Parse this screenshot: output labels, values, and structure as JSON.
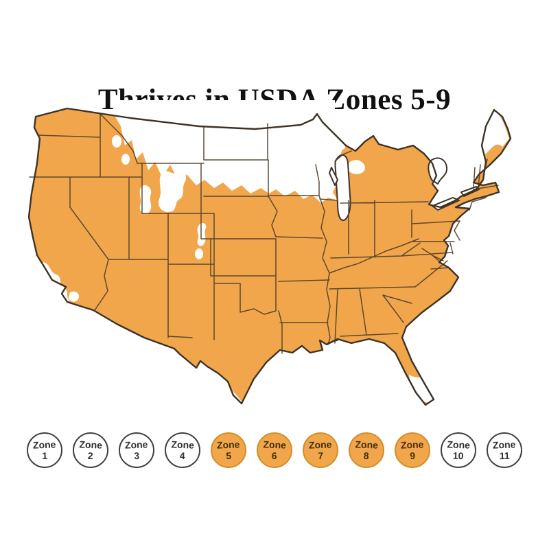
{
  "title": "Thrives in USDA Zones 5-9",
  "map": {
    "region": "Contiguous United States",
    "highlight_description": "States and areas in USDA hardiness zones 5-9 shaded orange; colder northern zones (1-4) and hottest southern tips (zones 10-11) left white",
    "white_areas": "Montana, North Dakota, most of South Dakota, northern Minnesota, northern Wisconsin, parts of upper Michigan, Rocky Mountain patches in Idaho/Wyoming/Utah/Colorado, northern Maine, northern New York/Vermont/New Hampshire, southern California coast, southern tip of Texas, southern tip of Florida"
  },
  "colors": {
    "background": "#ffffff",
    "title_color": "#111111",
    "map_orange": "#f1a64b",
    "map_outline": "#3e3226",
    "state_line": "#53422c",
    "lake_fill": "#ffffff",
    "badge_stroke": "#3f3f3f",
    "badge_text": "#303030",
    "badge_active_stroke": "#d28e2a",
    "badge_active_text": "#45300d"
  },
  "legend": {
    "zones": [
      {
        "label": "Zone",
        "number": "1",
        "active": false
      },
      {
        "label": "Zone",
        "number": "2",
        "active": false
      },
      {
        "label": "Zone",
        "number": "3",
        "active": false
      },
      {
        "label": "Zone",
        "number": "4",
        "active": false
      },
      {
        "label": "Zone",
        "number": "5",
        "active": true
      },
      {
        "label": "Zone",
        "number": "6",
        "active": true
      },
      {
        "label": "Zone",
        "number": "7",
        "active": true
      },
      {
        "label": "Zone",
        "number": "8",
        "active": true
      },
      {
        "label": "Zone",
        "number": "9",
        "active": true
      },
      {
        "label": "Zone",
        "number": "10",
        "active": false
      },
      {
        "label": "Zone",
        "number": "11",
        "active": false
      }
    ]
  }
}
